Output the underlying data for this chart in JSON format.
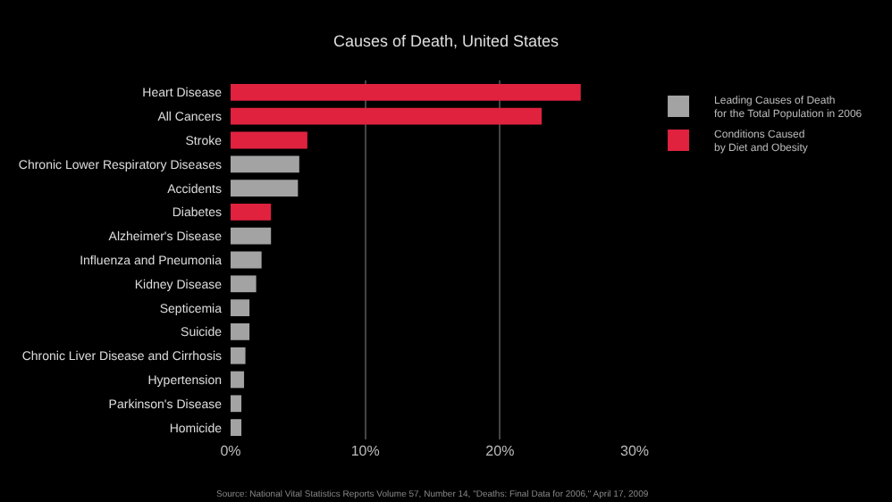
{
  "chart_data": {
    "type": "bar",
    "orientation": "horizontal",
    "title": "Causes of Death, United States",
    "categories": [
      "Heart Disease",
      "All Cancers",
      "Stroke",
      "Chronic Lower Respiratory Diseases",
      "Accidents",
      "Diabetes",
      "Alzheimer's Disease",
      "Influenza and Pneumonia",
      "Kidney Disease",
      "Septicemia",
      "Suicide",
      "Chronic Liver Disease and Cirrhosis",
      "Hypertension",
      "Parkinson's Disease",
      "Homicide"
    ],
    "series": [
      {
        "name": "Leading Causes of Death\nfor the Total Population in 2006",
        "color": "#a3a3a3",
        "values": [
          null,
          null,
          null,
          5.1,
          5.0,
          null,
          3.0,
          2.3,
          1.9,
          1.4,
          1.4,
          1.1,
          1.0,
          0.8,
          0.8
        ]
      },
      {
        "name": "Conditions Caused\nby Diet and Obesity",
        "color": "#e0223f",
        "values": [
          26.0,
          23.1,
          5.7,
          null,
          null,
          3.0,
          null,
          null,
          null,
          null,
          null,
          null,
          null,
          null,
          null
        ]
      }
    ],
    "xlim": [
      0,
      30
    ],
    "xticks": [
      {
        "value": 0,
        "label": "0%"
      },
      {
        "value": 10,
        "label": "10%"
      },
      {
        "value": 20,
        "label": "20%"
      },
      {
        "value": 30,
        "label": "30%"
      }
    ],
    "grid": "x",
    "legend": "top right",
    "annotations": [
      "Source: National Vital Statistics Reports Volume 57, Number 14, \"Deaths: Final Data for 2006,\" April 17, 2009"
    ]
  }
}
